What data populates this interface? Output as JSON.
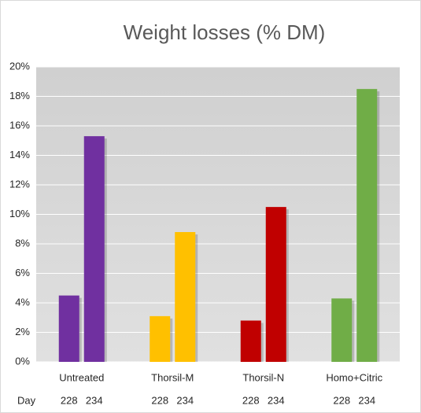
{
  "chart_data": {
    "type": "grouped-bar",
    "title": "Weight losses (% DM)",
    "categories": [
      "Untreated",
      "Thorsil-M",
      "Thorsil-N",
      "Homo+Citric"
    ],
    "subcategory_title": "Day",
    "subcategories": [
      "228",
      "234"
    ],
    "groups": [
      {
        "color": "#7030a0",
        "values": [
          4.5,
          15.3
        ]
      },
      {
        "color": "#ffc000",
        "values": [
          3.1,
          8.8
        ]
      },
      {
        "color": "#c00000",
        "values": [
          2.8,
          10.5
        ]
      },
      {
        "color": "#70ad47",
        "values": [
          4.3,
          18.5
        ]
      }
    ],
    "ylim": [
      0,
      20
    ],
    "yticks": [
      {
        "value": 0,
        "label": "0%"
      },
      {
        "value": 2,
        "label": "2%"
      },
      {
        "value": 4,
        "label": "4%"
      },
      {
        "value": 6,
        "label": "6%"
      },
      {
        "value": 8,
        "label": "8%"
      },
      {
        "value": 10,
        "label": "10%"
      },
      {
        "value": 12,
        "label": "12%"
      },
      {
        "value": 14,
        "label": "14%"
      },
      {
        "value": 16,
        "label": "16%"
      },
      {
        "value": 18,
        "label": "18%"
      },
      {
        "value": 20,
        "label": "20%"
      }
    ],
    "grid": true
  }
}
